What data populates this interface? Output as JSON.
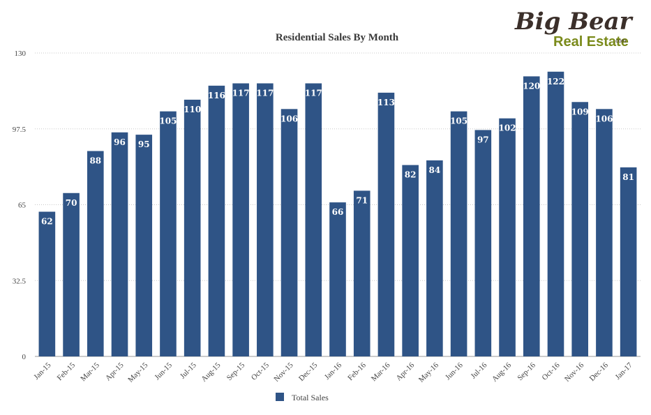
{
  "logo": {
    "name": "Big Bear",
    "sub": "Real Estate",
    "suffix": ".com"
  },
  "chart_data": {
    "type": "bar",
    "title": "Residential Sales By Month",
    "xlabel": "",
    "ylabel": "",
    "ylim": [
      0,
      130
    ],
    "yticks": [
      "0",
      "32.5",
      "65",
      "97.5",
      "130"
    ],
    "grid": true,
    "legend_placement": "bottom-center",
    "colors": {
      "bar": "#2f5486",
      "grid": "#c8c8c8",
      "axis": "#9a9a9a"
    },
    "categories": [
      "Jan-15",
      "Feb-15",
      "Mar-15",
      "Apr-15",
      "May-15",
      "Jun-15",
      "Jul-15",
      "Aug-15",
      "Sep-15",
      "Oct-15",
      "Nov-15",
      "Dec-15",
      "Jan-16",
      "Feb-16",
      "Mar-16",
      "Apr-16",
      "May-16",
      "Jun-16",
      "Jul-16",
      "Aug-16",
      "Sep-16",
      "Oct-16",
      "Nov-16",
      "Dec-16",
      "Jan-17"
    ],
    "series": [
      {
        "name": "Total Sales",
        "values": [
          62,
          70,
          88,
          96,
          95,
          105,
          110,
          116,
          117,
          117,
          106,
          117,
          66,
          71,
          113,
          82,
          84,
          105,
          97,
          102,
          120,
          122,
          109,
          106,
          81
        ]
      }
    ]
  }
}
